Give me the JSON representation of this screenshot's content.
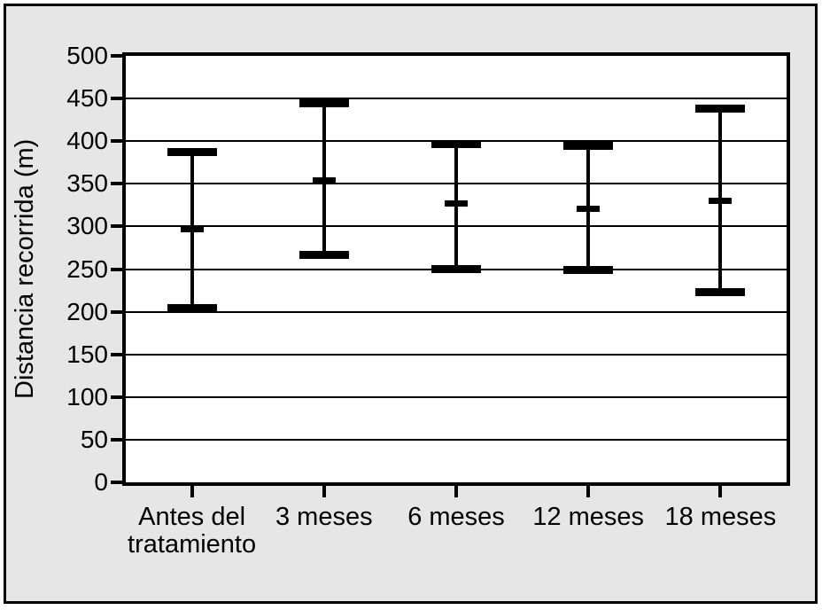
{
  "figure": {
    "background": "#ffffff",
    "panel_background": "#e6e6e6",
    "border_color": "#000000",
    "ink_color": "#000000"
  },
  "chart_data": {
    "type": "scatter",
    "variant": "error-bar-range",
    "title": "",
    "xlabel": "",
    "ylabel": "Distancia recorrida (m)",
    "ylim": [
      0,
      500
    ],
    "yticks": [
      0,
      50,
      100,
      150,
      200,
      250,
      300,
      350,
      400,
      450,
      500
    ],
    "grid": true,
    "legend_position": "none",
    "categories": [
      "Antes del tratamiento",
      "3 meses",
      "6 meses",
      "12 meses",
      "18 meses"
    ],
    "category_display_labels": [
      "Antes del\ntratamiento",
      "3 meses",
      "6 meses",
      "12 meses",
      "18 meses"
    ],
    "series": [
      {
        "name": "Distancia recorrida",
        "points": [
          {
            "category": "Antes del tratamiento",
            "min": 205,
            "mean": 296,
            "max": 388
          },
          {
            "category": "3 meses",
            "min": 267,
            "mean": 353,
            "max": 445
          },
          {
            "category": "6 meses",
            "min": 251,
            "mean": 326,
            "max": 397
          },
          {
            "category": "12 meses",
            "min": 250,
            "mean": 320,
            "max": 395
          },
          {
            "category": "18 meses",
            "min": 223,
            "mean": 330,
            "max": 439
          }
        ]
      }
    ]
  }
}
